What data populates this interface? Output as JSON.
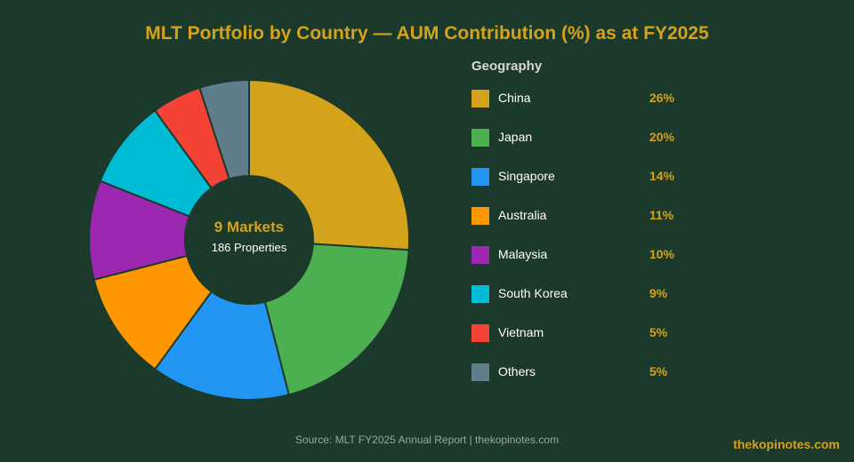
{
  "title": "MLT Portfolio by Country — AUM Contribution (%) as at FY2025",
  "center": {
    "main": "9 Markets",
    "sub": "186 Properties"
  },
  "legend_title": "Geography",
  "chart_data": {
    "type": "pie",
    "donut": true,
    "title": "MLT Portfolio by Country — AUM Contribution (%) as at FY2025",
    "legend_position": "right",
    "categories": [
      "China",
      "Japan",
      "Singapore",
      "Australia",
      "Malaysia",
      "South Korea",
      "Vietnam",
      "Others"
    ],
    "values": [
      26,
      20,
      14,
      11,
      10,
      9,
      5,
      5
    ],
    "value_labels": [
      "26%",
      "20%",
      "14%",
      "11%",
      "10%",
      "9%",
      "5%",
      "5%"
    ],
    "colors": [
      "#d4a21b",
      "#4caf50",
      "#2196f3",
      "#ff9800",
      "#9c27b0",
      "#00bcd4",
      "#f44336",
      "#607d8b"
    ]
  },
  "source": "Source: MLT FY2025 Annual Report | thekopinotes.com",
  "watermark": "thekopinotes.com"
}
